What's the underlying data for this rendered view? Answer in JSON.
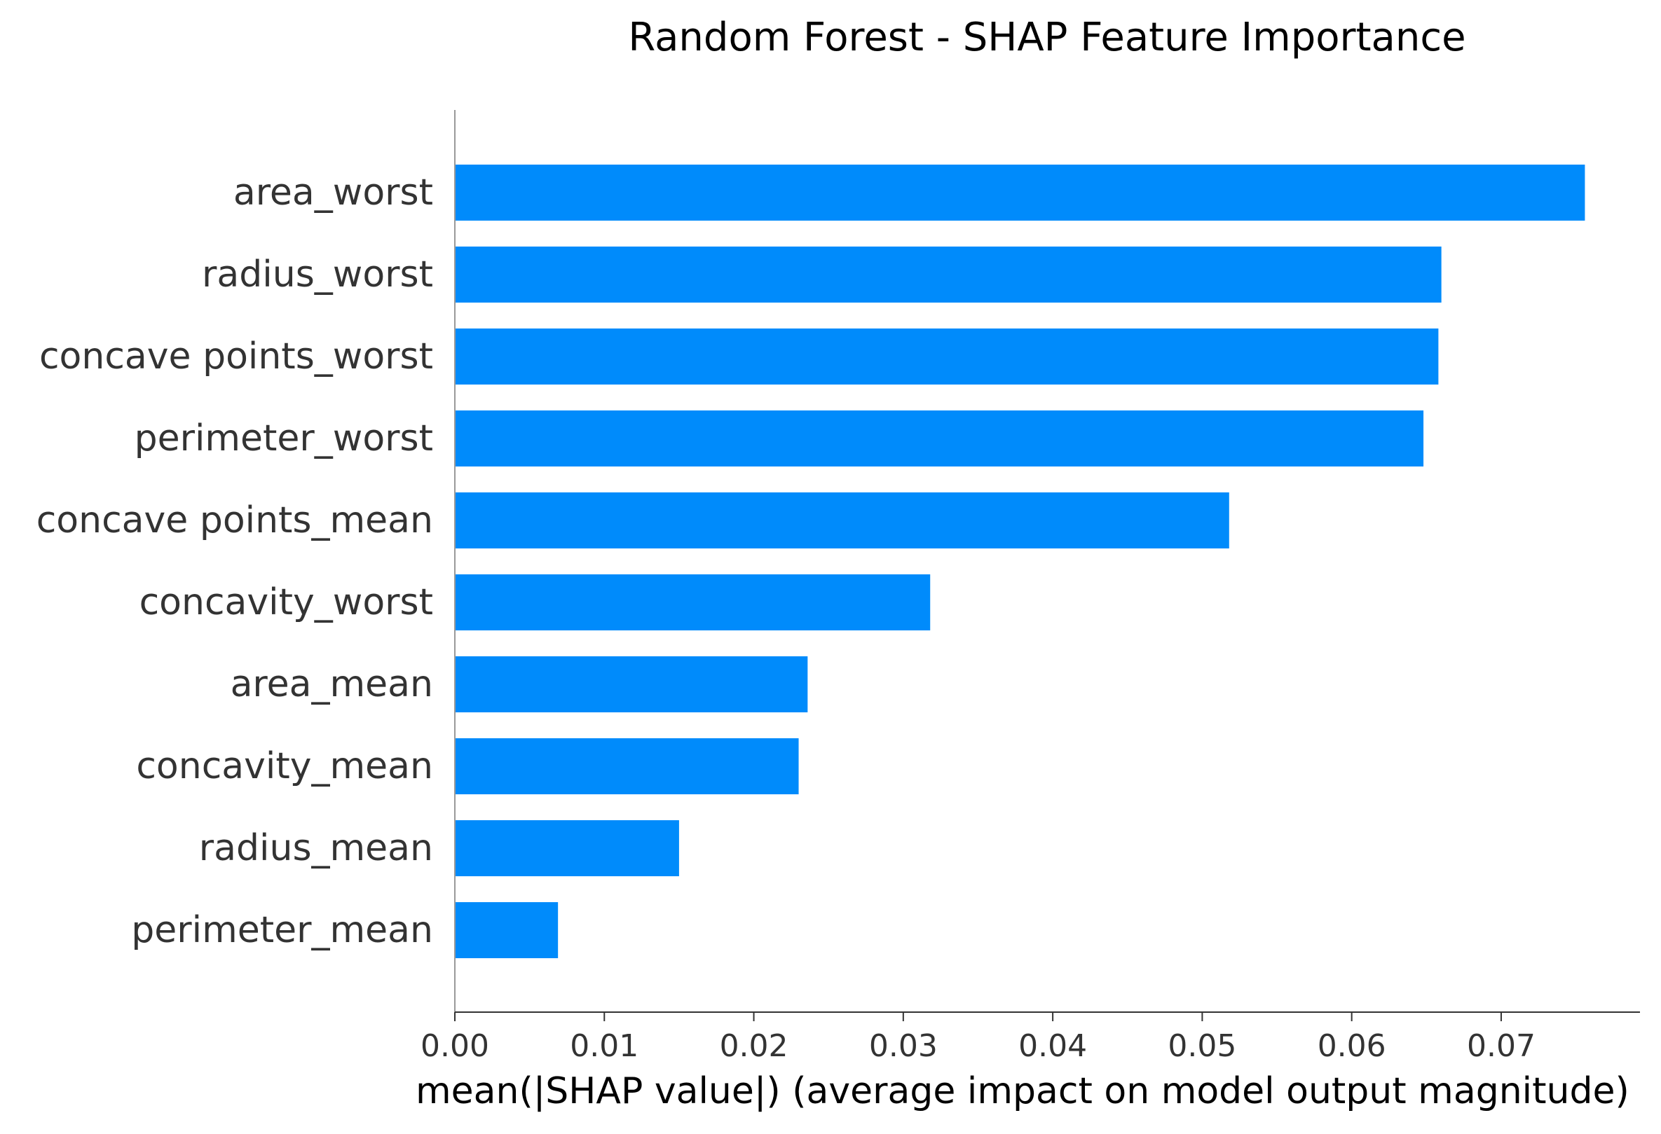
{
  "chart_data": {
    "type": "bar",
    "orientation": "horizontal",
    "title": "Random Forest - SHAP Feature Importance",
    "xlabel": "mean(|SHAP value|) (average impact on model output magnitude)",
    "ylabel": "",
    "categories": [
      "area_worst",
      "radius_worst",
      "concave points_worst",
      "perimeter_worst",
      "concave points_mean",
      "concavity_worst",
      "area_mean",
      "concavity_mean",
      "radius_mean",
      "perimeter_mean"
    ],
    "values": [
      0.0756,
      0.066,
      0.0658,
      0.0648,
      0.0518,
      0.0318,
      0.0236,
      0.023,
      0.015,
      0.0069
    ],
    "xlim": [
      0,
      0.0795
    ],
    "xticks": [
      0.0,
      0.01,
      0.02,
      0.03,
      0.04,
      0.05,
      0.06,
      0.07
    ],
    "xtick_labels": [
      "0.00",
      "0.01",
      "0.02",
      "0.03",
      "0.04",
      "0.05",
      "0.06",
      "0.07"
    ],
    "grid": false,
    "bar_color": "#008bfb",
    "axis_color": "#333333"
  }
}
